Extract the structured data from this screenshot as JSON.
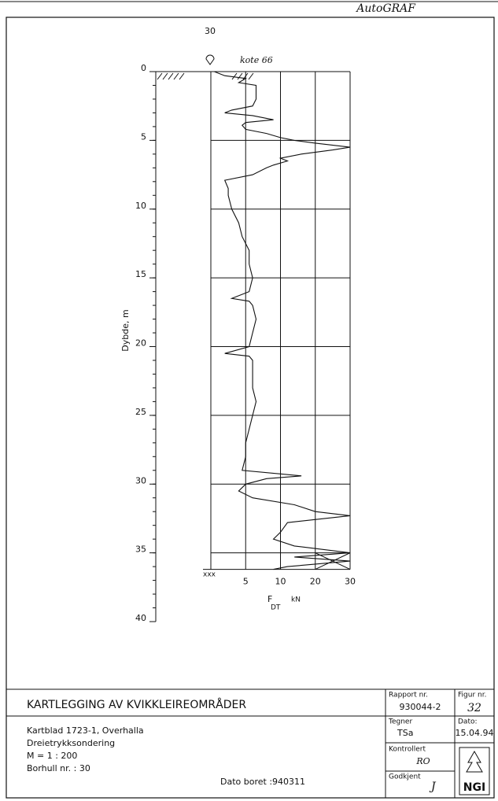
{
  "header": {
    "brand": "AutoGRAF",
    "number": "30",
    "elevation": "kote 66"
  },
  "chart_data": {
    "type": "line",
    "ylabel": "Dybde, m",
    "xlabel": "F",
    "xlabel_sub": "DT",
    "xunit": "kN",
    "ylim": [
      0,
      40
    ],
    "yticks": [
      0,
      5,
      10,
      15,
      20,
      25,
      30,
      35,
      40
    ],
    "xlim": [
      0,
      30
    ],
    "xticks": [
      5,
      10,
      20,
      30
    ],
    "stop_marker": "xxx",
    "color": "#000000",
    "series": [
      {
        "depth": [
          0,
          0.3,
          0.5,
          0.8,
          1,
          1.5,
          2,
          2.5,
          2.8,
          3,
          3.2,
          3.5,
          3.7,
          3.9,
          4.2,
          4.5,
          4.8,
          5,
          5.2,
          5.5,
          5.7,
          6,
          6.3,
          6.5,
          6.8,
          7,
          7.5,
          7.9,
          8.5,
          9,
          10,
          11,
          12,
          13,
          14,
          15,
          16,
          16.5,
          16.7,
          17,
          18,
          19,
          20,
          20.5,
          20.7,
          21,
          22,
          23,
          24,
          25,
          26,
          27,
          28,
          29,
          29.4,
          29.6,
          30,
          30.5,
          31,
          31.5,
          32,
          32.3,
          32.8,
          33.5,
          34,
          34.5,
          35,
          35.3,
          35.6,
          36,
          36.2
        ],
        "values": [
          0.5,
          2,
          5,
          4,
          6.5,
          6.5,
          6.5,
          6,
          3,
          2,
          6,
          9,
          5,
          4.5,
          5,
          8,
          10,
          14,
          20,
          30,
          25,
          16,
          10,
          12,
          9,
          8,
          6,
          2,
          2.5,
          2.5,
          3,
          4,
          4.5,
          5.5,
          5.5,
          6,
          5.5,
          3,
          5.5,
          6,
          6.5,
          6,
          5.5,
          2,
          5.5,
          6,
          6,
          6,
          6.5,
          6,
          5.5,
          5,
          5,
          4.5,
          16,
          8,
          5,
          4,
          6,
          14,
          20,
          30,
          12,
          10,
          9,
          14,
          30,
          14,
          30,
          12,
          9
        ]
      }
    ]
  },
  "title_block": {
    "title": "KARTLEGGING AV KVIKKLEIREOMRÅDER",
    "lines": [
      "Kartblad 1723-1, Overhalla",
      "Dreietrykksondering",
      "M = 1 : 200",
      "Borhull nr. : 30"
    ],
    "date_drilled": "Dato boret :940311",
    "report_label": "Rapport nr.",
    "report": "930044-2",
    "figure_label": "Figur nr.",
    "figure": "32",
    "drawn_label": "Tegner",
    "drawn": "TSa",
    "date_label": "Dato:",
    "date": "15.04.94",
    "checked_label": "Kontrollert",
    "checked": "RO",
    "approved_label": "Godkjent",
    "approved": "J",
    "logo": "NGI"
  }
}
